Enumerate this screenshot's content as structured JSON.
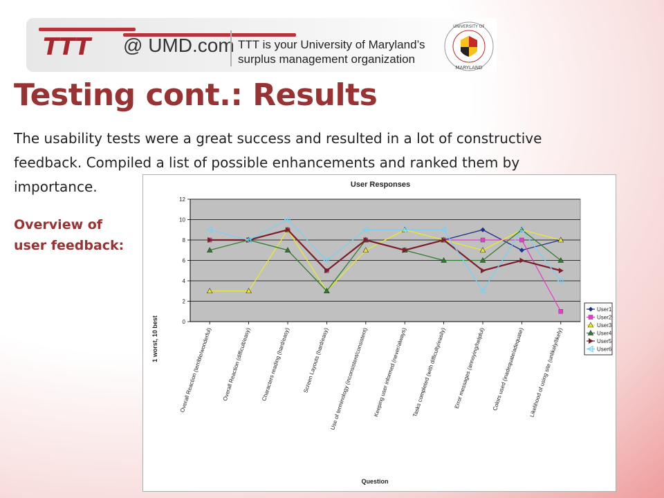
{
  "header": {
    "ttt_text": "TTT",
    "umd_text": "@ UMD.com",
    "tagline_line1": "TTT is your University of Maryland’s",
    "tagline_line2": "surplus management organization",
    "seal_text_top": "UNIVERSITY OF",
    "seal_text_bottom": "MARYLAND"
  },
  "slide": {
    "title": "Testing cont.: Results",
    "intro": "The usability tests were a great success and resulted in a lot of constructive feedback. Compiled a list of possible enhancements and ranked them by importance.",
    "overview_label": "Overview of user feedback:"
  },
  "chart_data": {
    "type": "line",
    "title": "User Responses",
    "xlabel": "Question",
    "ylabel": "1 worst, 10 best",
    "ylim": [
      0,
      12
    ],
    "yticks": [
      0,
      2,
      4,
      6,
      8,
      10,
      12
    ],
    "grid": true,
    "legend_position": "right",
    "categories": [
      "Overall Reaction (terrible/wonderful)",
      "Overall Reaction (difficult/easy)",
      "Characters reading (hard/easy)",
      "Screen Layouts (hard/easy)",
      "Use of terminology (inconsistent/consistent)",
      "Keeping user informed (never/always)",
      "Tasks completed (with difficulty/easily)",
      "Error messages (annoying/helpful)",
      "Colors used (inadequate/adequate)",
      "Likelihood of using site (unlikely/likely)"
    ],
    "series": [
      {
        "name": "User1",
        "color": "#1f2f8a",
        "marker": "diamond",
        "values": [
          8,
          8,
          9,
          5,
          8,
          7,
          8,
          9,
          7,
          8
        ]
      },
      {
        "name": "User2",
        "color": "#e040c8",
        "marker": "square",
        "values": [
          8,
          8,
          9,
          5,
          8,
          7,
          8,
          8,
          8,
          1
        ]
      },
      {
        "name": "User3",
        "color": "#e8e830",
        "marker": "triangle",
        "values": [
          3,
          3,
          9,
          3,
          7,
          9,
          8,
          7,
          9,
          8
        ]
      },
      {
        "name": "User4",
        "color": "#2e7d2e",
        "marker": "triangle",
        "values": [
          7,
          8,
          7,
          3,
          8,
          7,
          6,
          6,
          9,
          6
        ]
      },
      {
        "name": "User5",
        "color": "#7a1f2a",
        "marker": "arrow",
        "values": [
          8,
          8,
          9,
          5,
          8,
          7,
          8,
          5,
          6,
          5
        ]
      },
      {
        "name": "User6",
        "color": "#7ad0f0",
        "marker": "arrowleft",
        "values": [
          9,
          8,
          10,
          6,
          9,
          9,
          9,
          3,
          9,
          4
        ]
      }
    ]
  }
}
